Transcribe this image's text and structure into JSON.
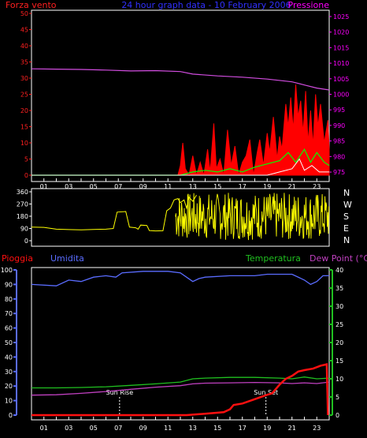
{
  "colors": {
    "frame": "#ffffff",
    "wind_axis": "#ff2020",
    "pressure_axis": "#ff00ff",
    "title": "#3030ff",
    "gust": "#ff0000",
    "wind_avg": "#00ff00",
    "wind_min": "#ffffff",
    "pressure": "#d24de0",
    "direction": "#ffff00",
    "rain": "#ff1010",
    "humidity": "#5a6cff",
    "temperature": "#20c020",
    "dewpoint": "#c040c0",
    "sun_marker": "#ffffff",
    "hour_ticks": "#ffffff"
  },
  "header": {
    "wind_label": "Forza vento",
    "title": "24 hour graph data - 10 February 2006",
    "pressure_label": "Pressione"
  },
  "legend": {
    "rain": "Pioggia",
    "humidity": "Umidita",
    "temperature": "Temperatura",
    "dewpoint": "Dew Point (°C)"
  },
  "sun": {
    "rise_label": "Sun Rise",
    "set_label": "Sun Set",
    "rise_hour": 7.1,
    "set_hour": 18.9
  },
  "compass": [
    "N",
    "W",
    "S",
    "E",
    "N"
  ],
  "chart_data": [
    {
      "type": "line",
      "name": "wind-pressure",
      "x_hour_labels": [
        "01",
        "03",
        "05",
        "07",
        "09",
        "11",
        "13",
        "15",
        "17",
        "19",
        "21",
        "23"
      ],
      "y_left": {
        "label": "Forza vento",
        "ticks": [
          0,
          5,
          10,
          15,
          20,
          25,
          30,
          35,
          40,
          45,
          50
        ],
        "range": [
          0,
          50
        ]
      },
      "y_right": {
        "label": "Pressione",
        "ticks": [
          975,
          980,
          985,
          990,
          995,
          1000,
          1005,
          1010,
          1015,
          1020,
          1025
        ],
        "range": [
          974,
          1026
        ]
      },
      "series": [
        {
          "role": "pressure",
          "points": [
            [
              0,
              1008.2
            ],
            [
              2,
              1008.1
            ],
            [
              4,
              1008.0
            ],
            [
              6,
              1007.8
            ],
            [
              8,
              1007.5
            ],
            [
              10,
              1007.6
            ],
            [
              12,
              1007.3
            ],
            [
              13,
              1006.5
            ],
            [
              15,
              1005.9
            ],
            [
              17,
              1005.5
            ],
            [
              19,
              1004.9
            ],
            [
              21,
              1004.0
            ],
            [
              22,
              1003.0
            ],
            [
              23,
              1002.0
            ],
            [
              24,
              1001.4
            ]
          ]
        },
        {
          "role": "gust",
          "points": [
            [
              0,
              0
            ],
            [
              11.8,
              0
            ],
            [
              12,
              3
            ],
            [
              12.2,
              10
            ],
            [
              12.4,
              2
            ],
            [
              12.7,
              0
            ],
            [
              13,
              6
            ],
            [
              13.3,
              0
            ],
            [
              13.6,
              4
            ],
            [
              13.9,
              0
            ],
            [
              14.2,
              8
            ],
            [
              14.4,
              1
            ],
            [
              14.7,
              16
            ],
            [
              14.9,
              2
            ],
            [
              15.2,
              5
            ],
            [
              15.5,
              0
            ],
            [
              15.8,
              14
            ],
            [
              16.1,
              3
            ],
            [
              16.4,
              9
            ],
            [
              16.7,
              0
            ],
            [
              17,
              4
            ],
            [
              17.3,
              6
            ],
            [
              17.6,
              11
            ],
            [
              17.9,
              0
            ],
            [
              18.2,
              7
            ],
            [
              18.4,
              11
            ],
            [
              18.7,
              3
            ],
            [
              19,
              13
            ],
            [
              19.2,
              7
            ],
            [
              19.5,
              18
            ],
            [
              19.8,
              5
            ],
            [
              20,
              12
            ],
            [
              20.2,
              8
            ],
            [
              20.5,
              22
            ],
            [
              20.7,
              15
            ],
            [
              20.9,
              24
            ],
            [
              21.1,
              14
            ],
            [
              21.3,
              28
            ],
            [
              21.5,
              18
            ],
            [
              21.7,
              23
            ],
            [
              21.9,
              13
            ],
            [
              22.1,
              26
            ],
            [
              22.3,
              10
            ],
            [
              22.5,
              20
            ],
            [
              22.7,
              9
            ],
            [
              22.9,
              25
            ],
            [
              23.1,
              15
            ],
            [
              23.3,
              22
            ],
            [
              23.6,
              10
            ],
            [
              23.9,
              17
            ],
            [
              24,
              8
            ]
          ]
        },
        {
          "role": "wind_avg",
          "points": [
            [
              0,
              0
            ],
            [
              12,
              0
            ],
            [
              13,
              1
            ],
            [
              14,
              1.5
            ],
            [
              15,
              1
            ],
            [
              16,
              2
            ],
            [
              17,
              1
            ],
            [
              18,
              2.5
            ],
            [
              19,
              3.5
            ],
            [
              20,
              4.5
            ],
            [
              20.7,
              7
            ],
            [
              21.3,
              4
            ],
            [
              22,
              8
            ],
            [
              22.5,
              4
            ],
            [
              23,
              7
            ],
            [
              23.6,
              4
            ],
            [
              24,
              3
            ]
          ]
        },
        {
          "role": "wind_min",
          "points": [
            [
              0,
              0
            ],
            [
              19,
              0
            ],
            [
              20,
              1
            ],
            [
              21,
              2
            ],
            [
              21.6,
              5
            ],
            [
              22,
              1.5
            ],
            [
              22.6,
              3
            ],
            [
              23.2,
              1
            ],
            [
              24,
              1
            ]
          ]
        }
      ]
    },
    {
      "type": "line",
      "name": "wind-direction",
      "y_ticks": [
        0,
        90,
        180,
        270,
        360
      ],
      "y_range": [
        0,
        360
      ],
      "series": [
        {
          "role": "direction",
          "points": [
            [
              0,
              100
            ],
            [
              1,
              98
            ],
            [
              2,
              85
            ],
            [
              3,
              82
            ],
            [
              4,
              80
            ],
            [
              5,
              83
            ],
            [
              6,
              85
            ],
            [
              6.6,
              90
            ],
            [
              6.9,
              210
            ],
            [
              7.6,
              215
            ],
            [
              7.9,
              100
            ],
            [
              8.4,
              95
            ],
            [
              8.6,
              85
            ],
            [
              8.8,
              115
            ],
            [
              9.3,
              112
            ],
            [
              9.5,
              75
            ],
            [
              10,
              72
            ],
            [
              10.6,
              73
            ],
            [
              10.9,
              220
            ],
            [
              11.2,
              240
            ],
            [
              11.5,
              300
            ],
            [
              11.8,
              310
            ],
            [
              12,
              280
            ],
            [
              12.3,
              300
            ],
            [
              12.5,
              240
            ],
            [
              12.7,
              320
            ],
            [
              13,
              290
            ],
            [
              13.3,
              335
            ]
          ]
        }
      ],
      "noisy_band": {
        "from_hour": 11.6,
        "to_hour": 24,
        "min": 5,
        "max": 355
      }
    },
    {
      "type": "line",
      "name": "rain-humidity-temperature",
      "y_left": {
        "label": "Pioggia / Umidita",
        "ticks": [
          0,
          10,
          20,
          30,
          40,
          50,
          60,
          70,
          80,
          90,
          100
        ],
        "range": [
          0,
          100
        ]
      },
      "y_right": {
        "label": "Temperatura / Dew Point (°C)",
        "ticks": [
          0,
          5,
          10,
          15,
          20,
          25,
          30,
          35,
          40
        ],
        "range": [
          0,
          40
        ]
      },
      "series": [
        {
          "role": "humidity",
          "points": [
            [
              0,
              90
            ],
            [
              2,
              89
            ],
            [
              3,
              93
            ],
            [
              4,
              92
            ],
            [
              5,
              95
            ],
            [
              6,
              96
            ],
            [
              6.8,
              95
            ],
            [
              7.3,
              98
            ],
            [
              9,
              99
            ],
            [
              11,
              99
            ],
            [
              12,
              98
            ],
            [
              13,
              92
            ],
            [
              13.5,
              94
            ],
            [
              14,
              95
            ],
            [
              16,
              96
            ],
            [
              18,
              96
            ],
            [
              19,
              97
            ],
            [
              21,
              97
            ],
            [
              22,
              93
            ],
            [
              22.5,
              90
            ],
            [
              23,
              92
            ],
            [
              23.5,
              96
            ],
            [
              24,
              96
            ]
          ]
        },
        {
          "role": "temperature",
          "points": [
            [
              0,
              7.5
            ],
            [
              2,
              7.5
            ],
            [
              4,
              7.6
            ],
            [
              6,
              7.8
            ],
            [
              8,
              8.2
            ],
            [
              10,
              8.6
            ],
            [
              12,
              9.1
            ],
            [
              13,
              10
            ],
            [
              14,
              10.2
            ],
            [
              16,
              10.4
            ],
            [
              18,
              10.4
            ],
            [
              20,
              10.2
            ],
            [
              21,
              10
            ],
            [
              22,
              10.5
            ],
            [
              23,
              10
            ],
            [
              24,
              10.2
            ]
          ]
        },
        {
          "role": "dewpoint",
          "points": [
            [
              0,
              5.5
            ],
            [
              2,
              5.6
            ],
            [
              4,
              6
            ],
            [
              6,
              6.5
            ],
            [
              8,
              7.1
            ],
            [
              10,
              7.7
            ],
            [
              12,
              8.1
            ],
            [
              13,
              8.6
            ],
            [
              14,
              8.8
            ],
            [
              16,
              8.9
            ],
            [
              18,
              9
            ],
            [
              20,
              8.9
            ],
            [
              21,
              8.7
            ],
            [
              22,
              8.9
            ],
            [
              23,
              8.7
            ],
            [
              24,
              9.1
            ]
          ]
        },
        {
          "role": "rain",
          "points": [
            [
              0,
              0
            ],
            [
              12.5,
              0
            ],
            [
              14,
              1
            ],
            [
              15.5,
              2
            ],
            [
              16,
              4
            ],
            [
              16.3,
              7
            ],
            [
              17,
              8
            ],
            [
              18,
              11
            ],
            [
              19,
              14
            ],
            [
              19.4,
              15
            ],
            [
              20,
              21
            ],
            [
              20.5,
              25
            ],
            [
              21,
              27
            ],
            [
              21.5,
              30
            ],
            [
              22,
              31
            ],
            [
              22.7,
              32
            ],
            [
              23.3,
              34
            ],
            [
              23.8,
              35
            ],
            [
              23.9,
              0
            ]
          ]
        }
      ]
    }
  ]
}
